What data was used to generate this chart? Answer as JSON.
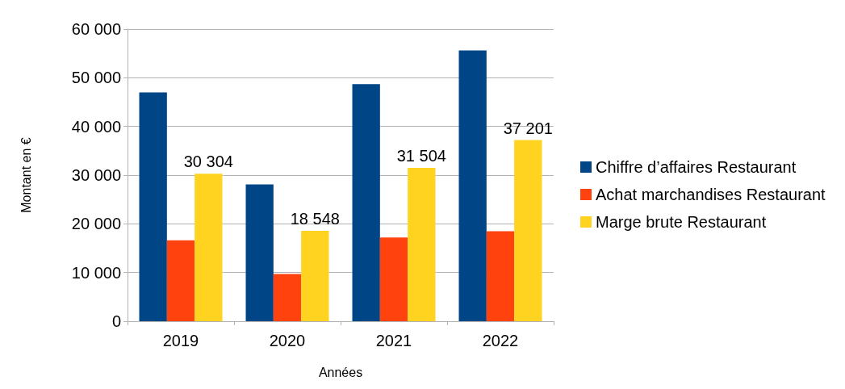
{
  "chart_data": {
    "type": "bar",
    "xlabel": "Années",
    "ylabel": "Montant en €",
    "categories": [
      "2019",
      "2020",
      "2021",
      "2022"
    ],
    "series": [
      {
        "name": "Chiffre d’affaires Restaurant",
        "color": "#004586",
        "values": [
          47000,
          28100,
          48700,
          55600
        ]
      },
      {
        "name": "Achat marchandises Restaurant",
        "color": "#ff420e",
        "values": [
          16600,
          9700,
          17200,
          18500
        ]
      },
      {
        "name": "Marge brute Restaurant",
        "color": "#ffd320",
        "values": [
          30304,
          18548,
          31504,
          37201
        ],
        "value_labels": [
          "30 304",
          "18 548",
          "31 504",
          "37 201"
        ]
      }
    ],
    "ylim": [
      0,
      60000
    ],
    "yticks": [
      {
        "value": 0,
        "label": "0"
      },
      {
        "value": 10000,
        "label": "10 000"
      },
      {
        "value": 20000,
        "label": "20 000"
      },
      {
        "value": 30000,
        "label": "30 000"
      },
      {
        "value": 40000,
        "label": "40 000"
      },
      {
        "value": 50000,
        "label": "50 000"
      },
      {
        "value": 60000,
        "label": "60 000"
      }
    ],
    "grid": "y",
    "legend": "right"
  }
}
